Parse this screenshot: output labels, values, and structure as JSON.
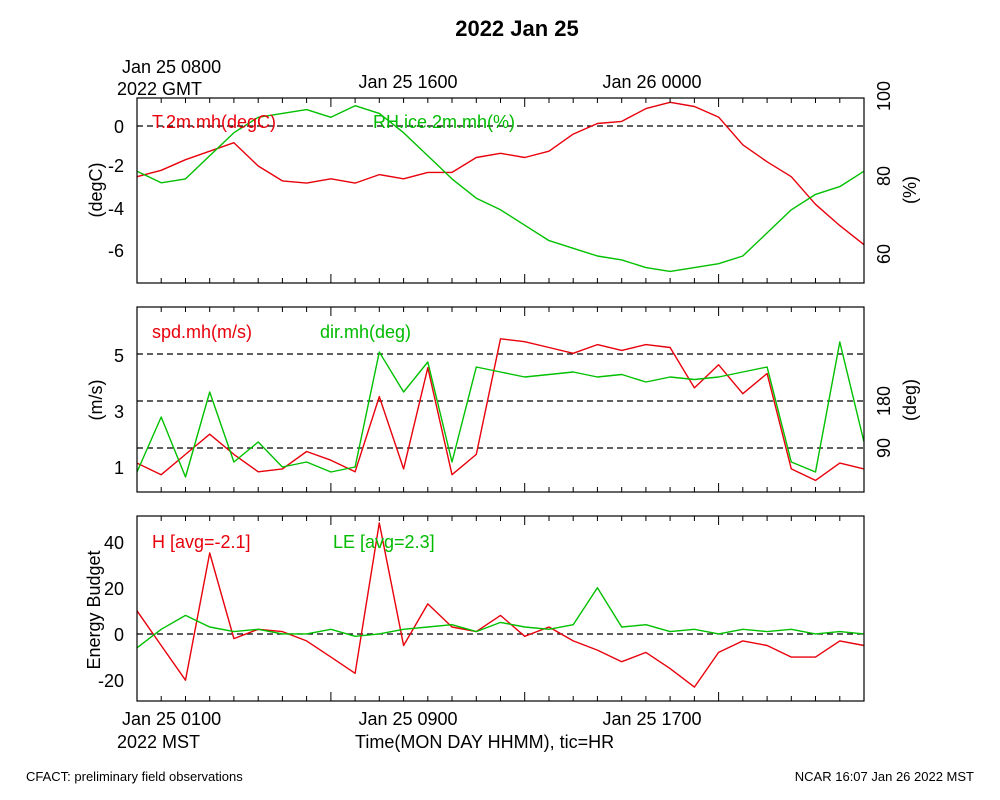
{
  "title": "2022 Jan 25",
  "colors": {
    "red": "#e8000b",
    "green": "#00c000"
  },
  "top_time_labels": {
    "gmt_line1": "Jan 25 0800",
    "gmt_line2": "2022 GMT",
    "mid": "Jan 25 1600",
    "right": "Jan 26 0000"
  },
  "bottom_time_labels": {
    "mst_line1": "Jan 25 0100",
    "mst_line2": "2022 MST",
    "mid": "Jan 25 0900",
    "right": "Jan 25 1700",
    "axis_title": "Time(MON DAY HHMM), tic=HR"
  },
  "footer": {
    "left": "CFACT: preliminary field observations",
    "right": "NCAR 16:07 Jan 26 2022 MST"
  },
  "chart_data": [
    {
      "type": "line",
      "panel": "temperature-rh",
      "xlim": [
        0,
        30
      ],
      "xlabel": "Time(MON DAY HHMM), tic=HR",
      "ylabel_left": "(degC)",
      "ylim_left": [
        -7.5,
        1.2
      ],
      "yticks_left": [
        0,
        -2,
        -4,
        -6
      ],
      "ylabel_right": "(%)",
      "ylim_right": [
        53,
        101
      ],
      "yticks_right": [
        100,
        80,
        60
      ],
      "reference_lines_left": [
        0
      ],
      "series": [
        {
          "name": "T.2m.mh(degC)",
          "axis": "left",
          "color": "red",
          "x": [
            0,
            1,
            2,
            3,
            4,
            5,
            6,
            7,
            8,
            9,
            10,
            11,
            12,
            13,
            14,
            15,
            16,
            17,
            18,
            19,
            20,
            21,
            22,
            23,
            24,
            25,
            26,
            27,
            28,
            29,
            30
          ],
          "values": [
            -2.5,
            -2.2,
            -1.7,
            -1.3,
            -0.9,
            -2.0,
            -2.7,
            -2.8,
            -2.6,
            -2.8,
            -2.4,
            -2.6,
            -2.3,
            -2.3,
            -1.6,
            -1.4,
            -1.6,
            -1.3,
            -0.5,
            0.0,
            0.1,
            0.7,
            1.0,
            0.8,
            0.3,
            -1.0,
            -1.8,
            -2.5,
            -3.8,
            -4.8,
            -5.7
          ]
        },
        {
          "name": "RH.ice.2m.mh(%)",
          "axis": "right",
          "color": "green",
          "x": [
            0,
            1,
            2,
            3,
            4,
            5,
            6,
            7,
            8,
            9,
            10,
            11,
            12,
            13,
            14,
            15,
            16,
            17,
            18,
            19,
            20,
            21,
            22,
            23,
            24,
            25,
            26,
            27,
            28,
            29,
            30
          ],
          "values": [
            82,
            79,
            80,
            86,
            92,
            96,
            97,
            98,
            96,
            99,
            97,
            92,
            86,
            80,
            75,
            72,
            68,
            64,
            62,
            60,
            59,
            57,
            56,
            57,
            58,
            60,
            66,
            72,
            76,
            78,
            82
          ]
        }
      ]
    },
    {
      "type": "line",
      "panel": "wind",
      "xlim": [
        0,
        30
      ],
      "ylabel_left": "(m/s)",
      "ylim_left": [
        0.2,
        6.6
      ],
      "yticks_left": [
        1,
        3,
        5
      ],
      "ylabel_right": "(deg)",
      "ylim_right": [
        0,
        370
      ],
      "yticks_right": [
        90,
        180
      ],
      "reference_lines_right": [
        90,
        180,
        270
      ],
      "series": [
        {
          "name": "spd.mh(m/s)",
          "axis": "left",
          "color": "red",
          "x": [
            0,
            1,
            2,
            3,
            4,
            5,
            6,
            7,
            8,
            9,
            10,
            11,
            12,
            13,
            14,
            15,
            16,
            17,
            18,
            19,
            20,
            21,
            22,
            23,
            24,
            25,
            26,
            27,
            28,
            29,
            30
          ],
          "values": [
            1.2,
            0.8,
            1.5,
            2.2,
            1.5,
            0.9,
            1.0,
            1.6,
            1.3,
            0.9,
            3.5,
            1.0,
            4.5,
            0.8,
            1.5,
            5.5,
            5.4,
            5.2,
            5.0,
            5.3,
            5.1,
            5.3,
            5.2,
            3.8,
            4.6,
            3.6,
            4.3,
            1.0,
            0.6,
            1.2,
            1.0
          ]
        },
        {
          "name": "dir.mh(deg)",
          "axis": "right",
          "color": "green",
          "x": [
            0,
            1,
            2,
            3,
            4,
            5,
            6,
            7,
            8,
            9,
            10,
            11,
            12,
            13,
            14,
            15,
            16,
            17,
            18,
            19,
            20,
            21,
            22,
            23,
            24,
            25,
            26,
            27,
            28,
            29,
            30
          ],
          "values": [
            40,
            150,
            30,
            200,
            60,
            100,
            50,
            60,
            40,
            50,
            280,
            200,
            260,
            60,
            250,
            240,
            230,
            235,
            240,
            230,
            235,
            220,
            230,
            225,
            230,
            240,
            250,
            60,
            40,
            300,
            100
          ]
        }
      ]
    },
    {
      "type": "line",
      "panel": "energy-budget",
      "xlim": [
        0,
        30
      ],
      "ylabel_left": "Energy Budget",
      "ylim_left": [
        -29,
        51
      ],
      "yticks_left": [
        40,
        20,
        0,
        -20
      ],
      "reference_lines_left": [
        0
      ],
      "series": [
        {
          "name": "H [avg=-2.1]",
          "color": "red",
          "x": [
            0,
            1,
            2,
            3,
            4,
            5,
            6,
            7,
            8,
            9,
            10,
            11,
            12,
            13,
            14,
            15,
            16,
            17,
            18,
            19,
            20,
            21,
            22,
            23,
            24,
            25,
            26,
            27,
            28,
            29,
            30
          ],
          "values": [
            10,
            -5,
            -20,
            35,
            -2,
            2,
            1,
            -3,
            -10,
            -17,
            48,
            -5,
            13,
            3,
            1,
            8,
            -1,
            3,
            -3,
            -7,
            -12,
            -8,
            -15,
            -23,
            -8,
            -3,
            -5,
            -10,
            -10,
            -3,
            -5
          ]
        },
        {
          "name": "LE [avg=2.3]",
          "color": "green",
          "x": [
            0,
            1,
            2,
            3,
            4,
            5,
            6,
            7,
            8,
            9,
            10,
            11,
            12,
            13,
            14,
            15,
            16,
            17,
            18,
            19,
            20,
            21,
            22,
            23,
            24,
            25,
            26,
            27,
            28,
            29,
            30
          ],
          "values": [
            -6,
            2,
            8,
            3,
            1,
            2,
            0,
            0,
            2,
            -1,
            0,
            2,
            3,
            4,
            1,
            5,
            3,
            2,
            4,
            20,
            3,
            4,
            1,
            2,
            0,
            2,
            1,
            2,
            0,
            1,
            0
          ]
        }
      ]
    }
  ]
}
